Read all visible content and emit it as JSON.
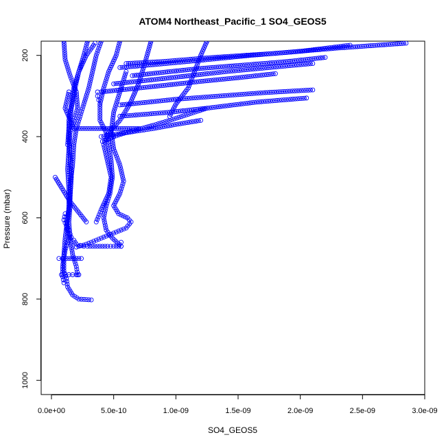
{
  "chart_data": {
    "type": "scatter",
    "title": "ATOM4 Northeast_Pacific_1 SO4_GEOS5",
    "xlabel": "SO4_GEOS5",
    "ylabel": "Pressure (mbar)",
    "xlim": [
      0,
      3e-09
    ],
    "ylim": [
      1035,
      165
    ],
    "y_reversed": true,
    "grid": false,
    "legend": "none",
    "x_ticks": [
      0,
      5e-10,
      1e-09,
      1.5e-09,
      2e-09,
      2.5e-09,
      3e-09
    ],
    "x_tick_labels": [
      "0.0e+00",
      "5.0e-10",
      "1.0e-09",
      "1.5e-09",
      "2.0e-09",
      "2.5e-09",
      "3.0e-09"
    ],
    "y_ticks": [
      200,
      400,
      600,
      800,
      1000
    ],
    "y_tick_labels": [
      "200",
      "400",
      "600",
      "800",
      "1000"
    ],
    "color": "#0000ff",
    "marker": "open-circle",
    "series": [
      {
        "x": [
          1e-10,
          1.1e-10,
          1.5e-10,
          2e-10,
          2.1e-10,
          1.8e-10,
          1.5e-10,
          1.4e-10,
          1.3e-10,
          1.4e-10,
          1.4e-10,
          1.2e-10,
          1.4e-10,
          1.1e-10,
          1e-10,
          1e-10,
          1.2e-10,
          1.3e-10,
          1.7e-10,
          2.2e-10,
          3.2e-10
        ],
        "y": [
          165,
          210,
          250,
          290,
          330,
          360,
          390,
          430,
          480,
          530,
          580,
          620,
          650,
          680,
          700,
          730,
          750,
          770,
          790,
          800,
          802
        ]
      },
      {
        "x": [
          2.9e-10,
          2.6e-10,
          2.2e-10,
          1.8e-10,
          1.6e-10,
          1.4e-10,
          1.4e-10,
          1.5e-10,
          1.6e-10,
          1.5e-10,
          1.3e-10,
          1.1e-10,
          1e-10,
          9e-11,
          9e-11,
          1e-10
        ],
        "y": [
          165,
          200,
          240,
          280,
          320,
          360,
          400,
          450,
          500,
          550,
          600,
          650,
          690,
          720,
          745,
          760
        ]
      },
      {
        "x": [
          4e-10,
          3.6e-10,
          3.3e-10,
          3e-10,
          2.6e-10,
          2.3e-10,
          2e-10,
          1.8e-10,
          1.7e-10,
          1.5e-10,
          1.5e-10,
          1.4e-10,
          1.5e-10,
          1.7e-10,
          2e-10,
          2.1e-10
        ],
        "y": [
          165,
          200,
          240,
          280,
          320,
          350,
          380,
          420,
          470,
          520,
          570,
          610,
          650,
          690,
          720,
          740
        ]
      },
      {
        "x": [
          5.5e-10,
          5.2e-10,
          4.6e-10,
          4.2e-10,
          3.9e-10,
          3.9e-10,
          4.4e-10,
          4.6e-10,
          4.8e-10,
          4.9e-10,
          4.7e-10,
          4.4e-10,
          4.2e-10,
          4.4e-10,
          4.9e-10,
          5.6e-10
        ],
        "y": [
          165,
          200,
          240,
          280,
          320,
          360,
          390,
          420,
          460,
          500,
          540,
          570,
          600,
          630,
          650,
          670
        ]
      },
      {
        "x": [
          1.1e-10,
          1e-10,
          1.2e-10,
          1.4e-10,
          1.5e-10,
          1.6e-10,
          1.8e-10,
          1.9e-10,
          2e-10,
          2.3e-10,
          2.6e-10,
          2.9e-10,
          3.3e-10,
          3.7e-10,
          4.1e-10,
          4.5e-10,
          5e-10,
          5.6e-10,
          5.6e-10
        ],
        "y": [
          590,
          605,
          620,
          630,
          640,
          648,
          655,
          660,
          665,
          668,
          670,
          670,
          670,
          670,
          670,
          670,
          670,
          670,
          660
        ]
      },
      {
        "x": [
          6e-10,
          5.5e-10,
          5e-10,
          4.8e-10,
          5e-10,
          5.5e-10,
          5.8e-10,
          5.5e-10,
          5e-10,
          5.4e-10,
          6.1e-10,
          6.4e-10,
          6e-10,
          5.2e-10,
          4.4e-10,
          3.6e-10,
          2.8e-10,
          2e-10
        ],
        "y": [
          240,
          290,
          340,
          390,
          430,
          470,
          510,
          540,
          570,
          590,
          600,
          610,
          625,
          635,
          645,
          655,
          665,
          672
        ]
      },
      {
        "x": [
          8e-10,
          7.5e-10,
          7e-10,
          6.3e-10,
          5.5e-10,
          4.6e-10,
          4.2e-10,
          4.5e-10,
          4.8e-10,
          4.6e-10,
          4e-10,
          3.6e-10
        ],
        "y": [
          165,
          220,
          270,
          320,
          360,
          390,
          420,
          460,
          500,
          540,
          580,
          610
        ]
      },
      {
        "x": [
          1.25e-09,
          1.1e-09,
          9.5e-10,
          8.2e-10,
          7e-10,
          6e-10,
          5.2e-10,
          4.6e-10,
          4.1e-10
        ],
        "y": [
          330,
          345,
          360,
          372,
          382,
          390,
          398,
          406,
          412
        ]
      },
      {
        "x": [
          6e-11,
          9e-11,
          1.2e-10,
          1.6e-10,
          2e-10,
          2.4e-10
        ],
        "y": [
          700,
          700,
          700,
          700,
          700,
          700
        ]
      },
      {
        "x": [
          8e-11,
          1.1e-10,
          1.4e-10,
          1.7e-10,
          2e-10,
          2.2e-10
        ],
        "y": [
          740,
          740,
          740,
          740,
          740,
          740
        ]
      },
      {
        "x": [
          3e-11,
          1.5e-10,
          2.8e-10
        ],
        "y": [
          500,
          560,
          610
        ]
      },
      {
        "x": [
          3.7e-10,
          3.7e-10,
          3.8e-10,
          3.9e-10
        ],
        "y": [
          290,
          300,
          310,
          320
        ]
      },
      {
        "x": [
          4.7e-10,
          4.8e-10,
          5e-10
        ],
        "y": [
          380,
          390,
          400
        ]
      },
      {
        "x": [
          2.85e-09,
          2.3e-09,
          1.8e-09,
          1.3e-09,
          9e-10,
          6e-10
        ],
        "y": [
          170,
          182,
          195,
          205,
          215,
          220
        ]
      },
      {
        "x": [
          2.4e-09,
          2e-09,
          1.6e-09,
          1.2e-09,
          8.5e-10,
          5.5e-10
        ],
        "y": [
          175,
          190,
          200,
          212,
          222,
          230
        ]
      },
      {
        "x": [
          2.2e-09,
          1.9e-09,
          1.5e-09,
          1.2e-09,
          9.5e-10,
          6.5e-10
        ],
        "y": [
          205,
          215,
          225,
          232,
          240,
          250
        ]
      },
      {
        "x": [
          2.1e-09,
          1.75e-09,
          1.4e-09,
          1.05e-09,
          7.5e-10,
          5e-10
        ],
        "y": [
          220,
          230,
          240,
          252,
          262,
          270
        ]
      },
      {
        "x": [
          1.8e-09,
          1.5e-09,
          1.2e-09,
          9e-10,
          6.5e-10,
          4e-10
        ],
        "y": [
          245,
          255,
          264,
          274,
          282,
          290
        ]
      },
      {
        "x": [
          2.1e-09,
          1.7e-09,
          1.35e-09,
          1e-09,
          7.5e-10,
          5.5e-10
        ],
        "y": [
          285,
          292,
          300,
          308,
          316,
          322
        ]
      },
      {
        "x": [
          2.05e-09,
          1.65e-09,
          1.25e-09,
          9.5e-10,
          7.5e-10,
          5.5e-10
        ],
        "y": [
          305,
          315,
          330,
          340,
          345,
          350
        ]
      },
      {
        "x": [
          1.2e-09,
          1e-09,
          8.2e-10,
          6.5e-10,
          5.2e-10,
          4e-10
        ],
        "y": [
          360,
          370,
          380,
          388,
          394,
          400
        ]
      },
      {
        "x": [
          1.25e-09,
          1.2e-09,
          1.15e-09,
          1.1e-09,
          1e-09,
          9.5e-10
        ],
        "y": [
          165,
          200,
          240,
          280,
          320,
          350
        ]
      },
      {
        "x": [
          3.5e-10,
          2.8e-10,
          2.2e-10,
          1.9e-10,
          1.6e-10,
          1.4e-10,
          1.3e-10
        ],
        "y": [
          170,
          200,
          240,
          280,
          330,
          380,
          420
        ]
      },
      {
        "x": [
          1.4e-10,
          1.1e-10,
          1.8e-10,
          3.8e-10,
          7e-10
        ],
        "y": [
          290,
          330,
          380,
          380,
          380
        ]
      }
    ]
  }
}
